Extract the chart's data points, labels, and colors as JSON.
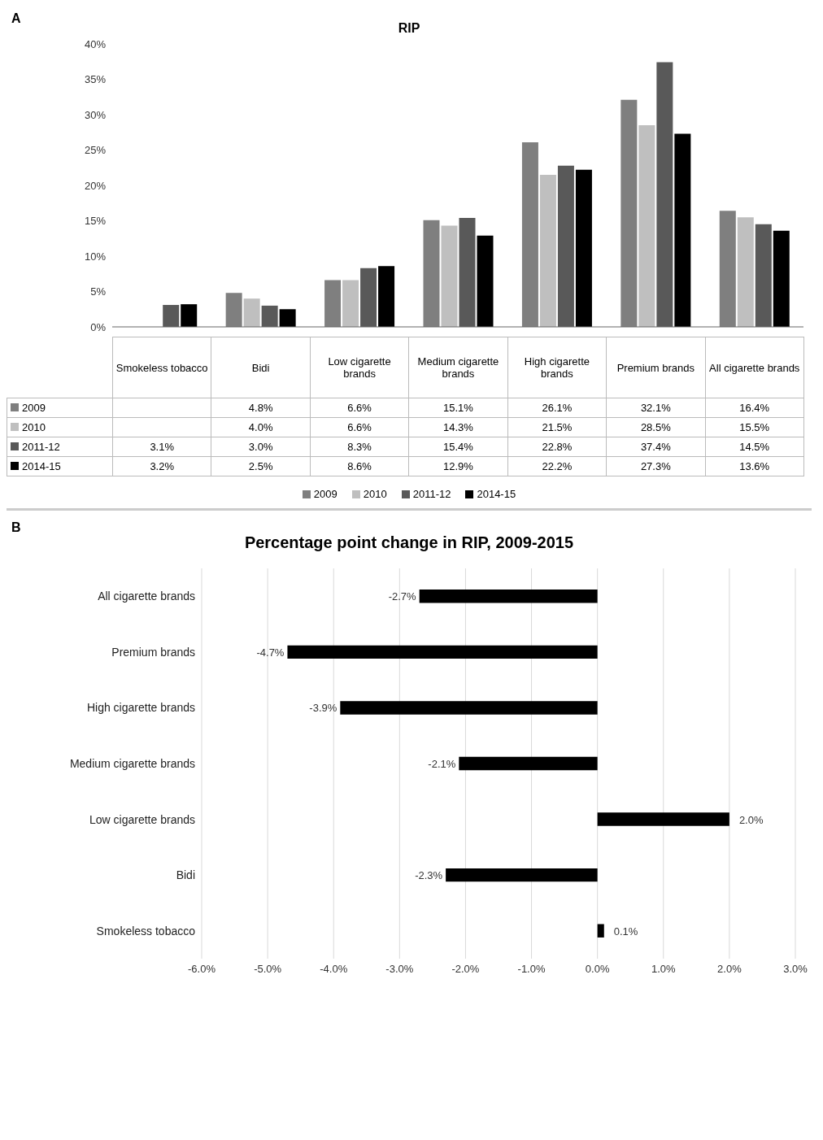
{
  "chart_data": [
    {
      "type": "bar",
      "title": "RIP",
      "annotations": [
        "A"
      ],
      "categories": [
        "Smokeless tobacco",
        "Bidi",
        "Low cigarette brands",
        "Medium cigarette brands",
        "High cigarette brands",
        "Premium brands",
        "All cigarette brands"
      ],
      "series": [
        {
          "name": "2009",
          "color": "#7f7f7f",
          "values": [
            null,
            4.8,
            6.6,
            15.1,
            26.1,
            32.1,
            16.4
          ],
          "value_labels": [
            null,
            "4.8%",
            "6.6%",
            "15.1%",
            "26.1%",
            "32.1%",
            "16.4%"
          ]
        },
        {
          "name": "2010",
          "color": "#bfbfbf",
          "values": [
            null,
            4.0,
            6.6,
            14.3,
            21.5,
            28.5,
            15.5
          ],
          "value_labels": [
            null,
            "4.0%",
            "6.6%",
            "14.3%",
            "21.5%",
            "28.5%",
            "15.5%"
          ]
        },
        {
          "name": "2011-12",
          "color": "#595959",
          "values": [
            3.1,
            3.0,
            8.3,
            15.4,
            22.8,
            37.4,
            14.5
          ],
          "value_labels": [
            "3.1%",
            "3.0%",
            "8.3%",
            "15.4%",
            "22.8%",
            "37.4%",
            "14.5%"
          ]
        },
        {
          "name": "2014-15",
          "color": "#000000",
          "values": [
            3.2,
            2.5,
            8.6,
            12.9,
            22.2,
            27.3,
            13.6
          ],
          "value_labels": [
            "3.2%",
            "2.5%",
            "8.6%",
            "12.9%",
            "22.2%",
            "27.3%",
            "13.6%"
          ]
        }
      ],
      "ylim": [
        0,
        40
      ],
      "yticks": [
        {
          "value": 0,
          "label": "0%"
        },
        {
          "value": 5,
          "label": "5%"
        },
        {
          "value": 10,
          "label": "10%"
        },
        {
          "value": 15,
          "label": "15%"
        },
        {
          "value": 20,
          "label": "20%"
        },
        {
          "value": 25,
          "label": "25%"
        },
        {
          "value": 30,
          "label": "30%"
        },
        {
          "value": 35,
          "label": "35%"
        },
        {
          "value": 40,
          "label": "40%"
        }
      ],
      "legend": "bottom"
    },
    {
      "type": "bar",
      "orientation": "horizontal",
      "title": "Percentage point change in RIP, 2009-2015",
      "annotations": [
        "B"
      ],
      "categories": [
        "All cigarette brands",
        "Premium brands",
        "High cigarette brands",
        "Medium cigarette brands",
        "Low cigarette brands",
        "Bidi",
        "Smokeless tobacco"
      ],
      "values": [
        -2.7,
        -4.7,
        -3.9,
        -2.1,
        2.0,
        -2.3,
        0.1
      ],
      "color": "#000000",
      "value_labels": [
        "-2.7%",
        "-4.7%",
        "-3.9%",
        "-2.1%",
        "2.0%",
        "-2.3%",
        "0.1%"
      ],
      "xlim": [
        -6,
        3
      ],
      "xticks": [
        {
          "value": -6,
          "label": "-6.0%"
        },
        {
          "value": -5,
          "label": "-5.0%"
        },
        {
          "value": -4,
          "label": "-4.0%"
        },
        {
          "value": -3,
          "label": "-3.0%"
        },
        {
          "value": -2,
          "label": "-2.0%"
        },
        {
          "value": -1,
          "label": "-1.0%"
        },
        {
          "value": 0,
          "label": "0.0%"
        },
        {
          "value": 1,
          "label": "1.0%"
        },
        {
          "value": 2,
          "label": "2.0%"
        },
        {
          "value": 3,
          "label": "3.0%"
        }
      ],
      "grid": "x"
    }
  ]
}
